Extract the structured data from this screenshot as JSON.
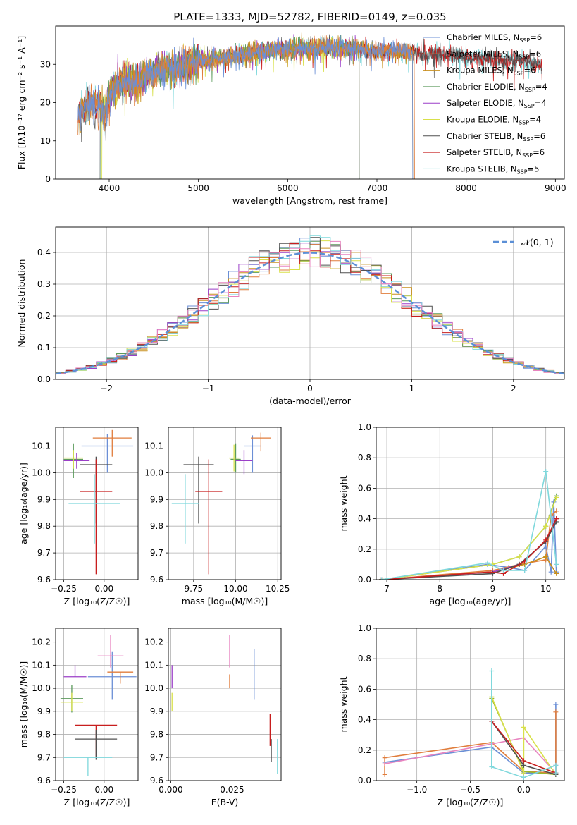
{
  "figure_title": "PLATE=1333, MJD=52782, FIBERID=0149, z=0.035",
  "colors": {
    "Chabrier MILES": "#6b8fd6",
    "Salpeter MILES": "#e07d3c",
    "Kroupa MILES": "#c8901e",
    "Chabrier ELODIE": "#5c9a5c",
    "Salpeter ELODIE": "#9b3fc8",
    "Kroupa ELODIE": "#d8e04a",
    "Chabrier STELIB": "#505050",
    "Salpeter STELIB": "#c81e1e",
    "Kroupa STELIB": "#7fd8dc",
    "pink": "#e884c0",
    "olive": "#9ab82a"
  },
  "chart_data": [
    {
      "id": "spectrum",
      "type": "line",
      "title": "PLATE=1333, MJD=52782, FIBERID=0149, z=0.035",
      "xlabel": "wavelength [Angstrom, rest frame]",
      "ylabel": "Flux [fλ10⁻¹⁷ erg cm⁻² s⁻¹ A⁻¹]",
      "xlim": [
        3400,
        9100
      ],
      "ylim": [
        0,
        40
      ],
      "xticks": [
        4000,
        5000,
        6000,
        7000,
        8000,
        9000
      ],
      "yticks": [
        0,
        10,
        20,
        30
      ],
      "legend_position": "top-right",
      "legend": [
        "Chabrier MILES, N_SSP=6",
        "Salpeter MILES, N_SSP=6",
        "Kroupa MILES, N_SSP=6",
        "Chabrier ELODIE, N_SSP=4",
        "Salpeter ELODIE, N_SSP=4",
        "Kroupa ELODIE, N_SSP=4",
        "Chabrier STELIB, N_SSP=6",
        "Salpeter STELIB, N_SSP=6",
        "Kroupa STELIB, N_SSP=5"
      ],
      "series_colors": [
        "#6b8fd6",
        "#e07d3c",
        "#c8901e",
        "#5c9a5c",
        "#9b3fc8",
        "#d8e04a",
        "#505050",
        "#c81e1e",
        "#7fd8dc"
      ],
      "continuum": {
        "x": [
          3650,
          3700,
          3800,
          3900,
          3950,
          4000,
          4100,
          4200,
          4300,
          4400,
          4500,
          4600,
          4800,
          5000,
          5200,
          5400,
          5600,
          5800,
          6000,
          6200,
          6400,
          6600,
          6800,
          7000,
          7200,
          7400,
          7600,
          7800,
          8000,
          8200,
          8400,
          8600,
          8850
        ],
        "y": [
          16,
          18,
          20,
          19,
          17,
          22,
          25,
          26,
          25,
          27,
          28,
          28.5,
          29.5,
          31,
          31.5,
          32,
          33,
          33.5,
          34,
          34,
          34.5,
          34.5,
          34,
          33.5,
          33.5,
          33,
          32.5,
          32.5,
          32,
          31.5,
          31,
          30.5,
          30
        ]
      },
      "extent": {
        "Chabrier MILES": [
          3650,
          7400
        ],
        "Salpeter MILES": [
          3650,
          7420
        ],
        "Kroupa MILES": [
          3650,
          7400
        ],
        "Chabrier ELODIE": [
          3900,
          6800
        ],
        "Salpeter ELODIE": [
          3900,
          6800
        ],
        "Kroupa ELODIE": [
          3920,
          6800
        ],
        "Chabrier STELIB": [
          3650,
          8850
        ],
        "Salpeter STELIB": [
          3650,
          8850
        ],
        "Kroupa STELIB": [
          3650,
          8850
        ]
      }
    },
    {
      "id": "residuals",
      "type": "line",
      "xlabel": "(data-model)/error",
      "ylabel": "Normed distribution",
      "xlim": [
        -2.5,
        2.5
      ],
      "ylim": [
        0,
        0.48
      ],
      "xticks": [
        -2,
        -1,
        0,
        1,
        2
      ],
      "xtick_labels": [
        "−2",
        "−1",
        "0",
        "1",
        "2"
      ],
      "yticks": [
        0,
        0.1,
        0.2,
        0.3,
        0.4
      ],
      "ytick_labels": [
        "0.0",
        "0.1",
        "0.2",
        "0.3",
        "0.4"
      ],
      "bin_width": 0.1,
      "reference_curve": "normal(0,1)",
      "legend": [
        "𝒩(0, 1)"
      ],
      "legend_position": "top-right"
    },
    {
      "id": "age_vs_Z",
      "type": "scatter",
      "xlabel": "Z [log₁₀(Z/Z☉)]",
      "ylabel": "age  [log₁₀(age/yr)]",
      "xlim": [
        -0.3,
        0.21
      ],
      "ylim": [
        9.6,
        10.17
      ],
      "xticks": [
        -0.25,
        0.0
      ],
      "xtick_labels": [
        "−0.25",
        "0.00"
      ],
      "yticks": [
        9.6,
        9.7,
        9.8,
        9.9,
        10.0,
        10.1
      ],
      "ytick_labels": [
        "9.6",
        "9.7",
        "9.8",
        "9.9",
        "10.0",
        "10.1"
      ],
      "points": [
        {
          "x": 0.02,
          "y": 10.1,
          "xerr": 0.16,
          "yerr": [
            0.1,
            0.045
          ],
          "color": "#6b8fd6"
        },
        {
          "x": 0.05,
          "y": 10.13,
          "xerr": 0.12,
          "yerr": [
            0.07,
            0.03
          ],
          "color": "#e07d3c"
        },
        {
          "x": -0.19,
          "y": 10.05,
          "xerr": 0.06,
          "yerr": [
            0.07,
            0.06
          ],
          "color": "#5c9a5c"
        },
        {
          "x": -0.17,
          "y": 10.045,
          "xerr": 0.08,
          "yerr": [
            0.03,
            0.03
          ],
          "color": "#9b3fc8"
        },
        {
          "x": -0.19,
          "y": 10.055,
          "xerr": 0.06,
          "yerr": [
            0.04,
            0.03
          ],
          "color": "#d8e04a"
        },
        {
          "x": -0.05,
          "y": 10.03,
          "xerr": 0.1,
          "yerr": [
            0.22,
            0.03
          ],
          "color": "#505050"
        },
        {
          "x": -0.05,
          "y": 9.93,
          "xerr": 0.1,
          "yerr": [
            0.31,
            0.12
          ],
          "color": "#c81e1e"
        },
        {
          "x": -0.06,
          "y": 9.885,
          "xerr": 0.16,
          "yerr": [
            0.15,
            0.11
          ],
          "color": "#7fd8dc"
        }
      ]
    },
    {
      "id": "age_vs_mass",
      "type": "scatter",
      "xlabel": "mass [log₁₀(M/M☉)]",
      "ylabel": "",
      "xlim": [
        9.6,
        10.27
      ],
      "ylim": [
        9.6,
        10.17
      ],
      "xticks": [
        9.75,
        10.0,
        10.25
      ],
      "xtick_labels": [
        "9.75",
        "10.00",
        "10.25"
      ],
      "yticks": [
        9.6,
        9.7,
        9.8,
        9.9,
        10.0,
        10.1
      ],
      "ytick_labels": [
        "9.6",
        "9.7",
        "9.8",
        "9.9",
        "10.0",
        "10.1"
      ],
      "points": [
        {
          "x": 10.1,
          "y": 10.1,
          "xerr": 0.05,
          "yerr": [
            0.1,
            0.04
          ],
          "color": "#6b8fd6"
        },
        {
          "x": 10.15,
          "y": 10.13,
          "xerr": 0.06,
          "yerr": [
            0.05,
            0.02
          ],
          "color": "#e07d3c"
        },
        {
          "x": 10.0,
          "y": 10.05,
          "xerr": 0.03,
          "yerr": [
            0.05,
            0.06
          ],
          "color": "#5c9a5c"
        },
        {
          "x": 10.05,
          "y": 10.045,
          "xerr": 0.05,
          "yerr": [
            0.05,
            0.04
          ],
          "color": "#9b3fc8"
        },
        {
          "x": 9.99,
          "y": 10.055,
          "xerr": 0.03,
          "yerr": [
            0.05,
            0.05
          ],
          "color": "#d8e04a"
        },
        {
          "x": 9.78,
          "y": 10.03,
          "xerr": 0.09,
          "yerr": [
            0.22,
            0.03
          ],
          "color": "#505050"
        },
        {
          "x": 9.84,
          "y": 9.93,
          "xerr": 0.08,
          "yerr": [
            0.31,
            0.12
          ],
          "color": "#c81e1e"
        },
        {
          "x": 9.7,
          "y": 9.885,
          "xerr": 0.08,
          "yerr": [
            0.15,
            0.11
          ],
          "color": "#7fd8dc"
        }
      ]
    },
    {
      "id": "weight_vs_age",
      "type": "line",
      "xlabel": "age  [log₁₀(age/yr)]",
      "ylabel": "mass weight",
      "xlim": [
        6.8,
        10.35
      ],
      "ylim": [
        0,
        1
      ],
      "xticks": [
        7,
        8,
        9,
        10
      ],
      "yticks": [
        0,
        0.2,
        0.4,
        0.6,
        0.8,
        1.0
      ],
      "ytick_labels": [
        "0.0",
        "0.2",
        "0.4",
        "0.6",
        "0.8",
        "1.0"
      ],
      "series": [
        {
          "color": "#6b8fd6",
          "x": [
            6.9,
            8.9,
            9.3,
            9.6,
            10.0,
            10.1,
            10.15,
            10.2
          ],
          "y": [
            0.0,
            0.1,
            0.08,
            0.06,
            0.22,
            0.05,
            0.51,
            0.05
          ]
        },
        {
          "color": "#e07d3c",
          "x": [
            6.9,
            9.0,
            9.5,
            10.0,
            10.1,
            10.2
          ],
          "y": [
            0.0,
            0.06,
            0.1,
            0.13,
            0.42,
            0.45
          ]
        },
        {
          "color": "#c8901e",
          "x": [
            6.9,
            9.0,
            9.6,
            10.0,
            10.2
          ],
          "y": [
            0.0,
            0.05,
            0.1,
            0.15,
            0.04
          ]
        },
        {
          "color": "#5c9a5c",
          "x": [
            6.9,
            9.0,
            9.5,
            10.0,
            10.2
          ],
          "y": [
            0.0,
            0.1,
            0.15,
            0.35,
            0.55
          ]
        },
        {
          "color": "#9b3fc8",
          "x": [
            6.9,
            9.0,
            9.5,
            10.0,
            10.2
          ],
          "y": [
            0.0,
            0.05,
            0.1,
            0.25,
            0.4
          ]
        },
        {
          "color": "#d8e04a",
          "x": [
            6.9,
            9.0,
            9.5,
            10.0,
            10.2
          ],
          "y": [
            0.0,
            0.1,
            0.15,
            0.35,
            0.54
          ]
        },
        {
          "color": "#505050",
          "x": [
            6.9,
            9.0,
            9.5,
            10.0,
            10.2
          ],
          "y": [
            0.0,
            0.04,
            0.1,
            0.25,
            0.38
          ]
        },
        {
          "color": "#c81e1e",
          "x": [
            6.9,
            8.95,
            9.2,
            9.6,
            10.0,
            10.2
          ],
          "y": [
            0.0,
            0.05,
            0.04,
            0.12,
            0.26,
            0.4
          ]
        },
        {
          "color": "#7fd8dc",
          "x": [
            6.9,
            8.9,
            9.2,
            9.6,
            10.0,
            10.2
          ],
          "y": [
            0.0,
            0.11,
            0.06,
            0.06,
            0.71,
            0.1
          ]
        }
      ]
    },
    {
      "id": "mass_vs_Z",
      "type": "scatter",
      "xlabel": "Z [log₁₀(Z/Z☉)]",
      "ylabel": "mass [log₁₀(M/M☉)]",
      "xlim": [
        -0.3,
        0.21
      ],
      "ylim": [
        9.6,
        10.26
      ],
      "xticks": [
        -0.25,
        0.0
      ],
      "xtick_labels": [
        "−0.25",
        "0.00"
      ],
      "yticks": [
        9.6,
        9.7,
        9.8,
        9.9,
        10.0,
        10.1,
        10.2
      ],
      "ytick_labels": [
        "9.6",
        "9.7",
        "9.8",
        "9.9",
        "10.0",
        "10.1",
        "10.2"
      ],
      "points": [
        {
          "x": 0.05,
          "y": 10.05,
          "xerr": 0.15,
          "yerr": [
            0.1,
            0.11
          ],
          "color": "#6b8fd6"
        },
        {
          "x": 0.1,
          "y": 10.07,
          "xerr": 0.08,
          "yerr": [
            0.05,
            0.0
          ],
          "color": "#e07d3c"
        },
        {
          "x": 0.04,
          "y": 10.14,
          "xerr": 0.08,
          "yerr": [
            0.05,
            0.09
          ],
          "color": "#e884c0"
        },
        {
          "x": -0.18,
          "y": 10.05,
          "xerr": 0.07,
          "yerr": [
            0.0,
            0.05
          ],
          "color": "#9b3fc8"
        },
        {
          "x": -0.2,
          "y": 9.955,
          "xerr": 0.07,
          "yerr": [
            0.06,
            0.06
          ],
          "color": "#5c9a5c"
        },
        {
          "x": -0.2,
          "y": 9.94,
          "xerr": 0.07,
          "yerr": [
            0.04,
            0.04
          ],
          "color": "#d8e04a"
        },
        {
          "x": -0.05,
          "y": 9.84,
          "xerr": 0.13,
          "yerr": [
            0.14,
            0.0
          ],
          "color": "#c81e1e"
        },
        {
          "x": -0.05,
          "y": 9.78,
          "xerr": 0.13,
          "yerr": [
            0.09,
            0.04
          ],
          "color": "#505050"
        },
        {
          "x": -0.1,
          "y": 9.7,
          "xerr": 0.15,
          "yerr": [
            0.08,
            0.0
          ],
          "color": "#7fd8dc"
        }
      ]
    },
    {
      "id": "mass_vs_EBV",
      "type": "scatter",
      "xlabel": "E(B-V)",
      "ylabel": "",
      "xlim": [
        -0.001,
        0.045
      ],
      "ylim": [
        9.6,
        10.26
      ],
      "xticks": [
        0.0,
        0.025
      ],
      "xtick_labels": [
        "0.000",
        "0.025"
      ],
      "yticks": [
        9.6,
        9.7,
        9.8,
        9.9,
        10.0,
        10.1,
        10.2
      ],
      "ytick_labels": [
        "9.6",
        "9.7",
        "9.8",
        "9.9",
        "10.0",
        "10.1",
        "10.2"
      ],
      "points": [
        {
          "x": 0.0005,
          "y": 10.05,
          "xerr": 0,
          "yerr": [
            0.05,
            0.05
          ],
          "color": "#9b3fc8"
        },
        {
          "x": 0.0005,
          "y": 9.94,
          "xerr": 0,
          "yerr": [
            0.04,
            0.04
          ],
          "color": "#d8e04a"
        },
        {
          "x": 0.024,
          "y": 10.14,
          "xerr": 0,
          "yerr": [
            0.05,
            0.09
          ],
          "color": "#e884c0"
        },
        {
          "x": 0.024,
          "y": 10.06,
          "xerr": 0,
          "yerr": [
            0.06,
            0.0
          ],
          "color": "#e07d3c"
        },
        {
          "x": 0.034,
          "y": 10.06,
          "xerr": 0,
          "yerr": [
            0.11,
            0.11
          ],
          "color": "#6b8fd6"
        },
        {
          "x": 0.0405,
          "y": 9.82,
          "xerr": 0,
          "yerr": [
            0.07,
            0.07
          ],
          "color": "#c81e1e"
        },
        {
          "x": 0.041,
          "y": 9.73,
          "xerr": 0,
          "yerr": [
            0.05,
            0.05
          ],
          "color": "#505050"
        },
        {
          "x": 0.0435,
          "y": 9.72,
          "xerr": 0,
          "yerr": [
            0.09,
            0.06
          ],
          "color": "#7fd8dc"
        }
      ]
    },
    {
      "id": "weight_vs_Z",
      "type": "line",
      "xlabel": "Z [log₁₀(Z/Z☉)]",
      "ylabel": "mass weight",
      "xlim": [
        -1.38,
        0.38
      ],
      "ylim": [
        0,
        1
      ],
      "xticks": [
        -1.0,
        -0.5,
        0.0
      ],
      "xtick_labels": [
        "−1.0",
        "−0.5",
        "0.0"
      ],
      "yticks": [
        0,
        0.2,
        0.4,
        0.6,
        0.8,
        1.0
      ],
      "ytick_labels": [
        "0.0",
        "0.2",
        "0.4",
        "0.6",
        "0.8",
        "1.0"
      ],
      "series": [
        {
          "color": "#6b8fd6",
          "x": [
            -1.3,
            -0.3,
            0.0,
            0.3,
            0.3
          ],
          "y": [
            0.12,
            0.22,
            0.05,
            0.05,
            0.5
          ]
        },
        {
          "color": "#e07d3c",
          "x": [
            -1.3,
            -1.3,
            -0.3,
            0.0,
            0.3,
            0.3
          ],
          "y": [
            0.04,
            0.15,
            0.25,
            0.06,
            0.05,
            0.45
          ]
        },
        {
          "color": "#e884c0",
          "x": [
            -1.3,
            0.0,
            0.3,
            0.3
          ],
          "y": [
            0.11,
            0.28,
            0.05,
            0.1
          ]
        },
        {
          "color": "#9ab82a",
          "x": [
            -0.3,
            0.0,
            0.3
          ],
          "y": [
            0.54,
            0.06,
            0.04
          ]
        },
        {
          "color": "#d8e04a",
          "x": [
            -0.3,
            0.0,
            0.0,
            0.3
          ],
          "y": [
            0.55,
            0.05,
            0.35,
            0.04
          ]
        },
        {
          "color": "#505050",
          "x": [
            -0.3,
            -0.3,
            0.0,
            0.3
          ],
          "y": [
            0.39,
            0.39,
            0.1,
            0.04
          ]
        },
        {
          "color": "#c81e1e",
          "x": [
            -0.3,
            0.0,
            0.3
          ],
          "y": [
            0.39,
            0.13,
            0.05
          ]
        },
        {
          "color": "#7fd8dc",
          "x": [
            -0.3,
            -0.3,
            0.0,
            0.3,
            0.3
          ],
          "y": [
            0.72,
            0.09,
            0.02,
            0.1,
            0.05
          ]
        }
      ]
    }
  ]
}
